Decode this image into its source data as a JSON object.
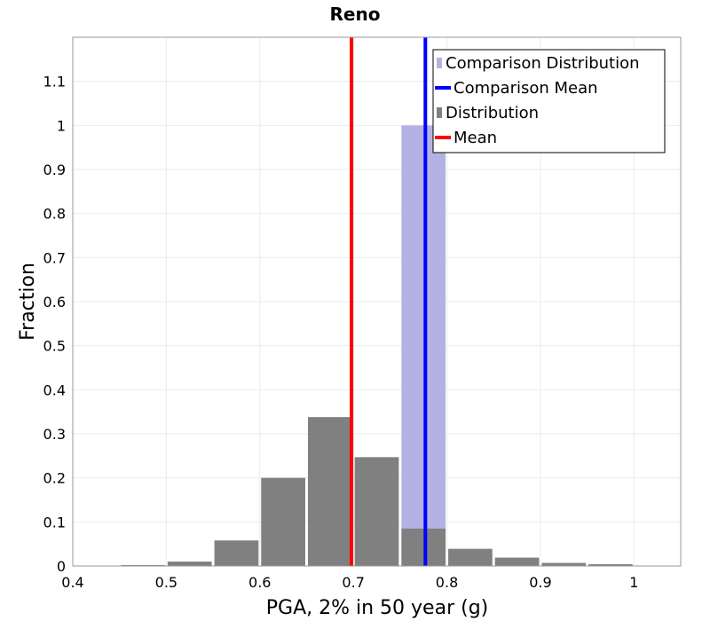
{
  "chart_data": {
    "type": "bar",
    "title": "Reno",
    "xlabel": "PGA, 2% in 50 year (g)",
    "ylabel": "Fraction",
    "xlim": [
      0.4,
      1.05
    ],
    "ylim": [
      0,
      1.2
    ],
    "x_ticks": [
      "0.4",
      "0.5",
      "0.6",
      "0.7",
      "0.8",
      "0.9",
      "1"
    ],
    "y_ticks": [
      "0",
      "0.1",
      "0.2",
      "0.3",
      "0.4",
      "0.5",
      "0.6",
      "0.7",
      "0.8",
      "0.9",
      "1",
      "1.1"
    ],
    "bin_width": 0.05,
    "grid": true,
    "legend_position": "top-right",
    "series": [
      {
        "name": "Comparison Distribution",
        "kind": "bar",
        "color": "#b3b3e3",
        "bins": [
          {
            "x": 0.775,
            "value": 1.0
          }
        ]
      },
      {
        "name": "Comparison Mean",
        "kind": "vline",
        "color": "#0000ff",
        "x": 0.777
      },
      {
        "name": "Distribution",
        "kind": "bar",
        "color": "#808080",
        "bins": [
          {
            "x": 0.475,
            "value": 0.002
          },
          {
            "x": 0.525,
            "value": 0.01
          },
          {
            "x": 0.575,
            "value": 0.058
          },
          {
            "x": 0.625,
            "value": 0.2
          },
          {
            "x": 0.675,
            "value": 0.338
          },
          {
            "x": 0.725,
            "value": 0.247
          },
          {
            "x": 0.775,
            "value": 0.085
          },
          {
            "x": 0.825,
            "value": 0.039
          },
          {
            "x": 0.875,
            "value": 0.019
          },
          {
            "x": 0.925,
            "value": 0.007
          },
          {
            "x": 0.975,
            "value": 0.004
          }
        ]
      },
      {
        "name": "Mean",
        "kind": "vline",
        "color": "#ff0000",
        "x": 0.698
      }
    ]
  }
}
